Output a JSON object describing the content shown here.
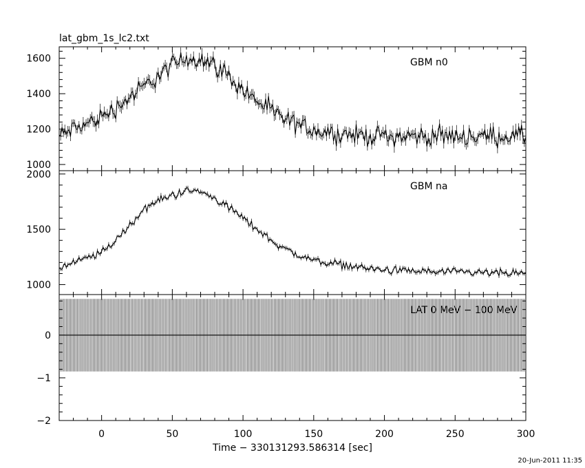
{
  "chart_data": {
    "type": "line",
    "title": "lat_gbm_1s_lc2.txt",
    "xlabel": "Time − 330131293.586314 [sec]",
    "x_ticks": [
      "0",
      "50",
      "100",
      "150",
      "200",
      "250",
      "300"
    ],
    "x_range": [
      -30,
      300
    ],
    "timestamp": "20-Jun-2011 11:35",
    "panels": [
      {
        "name": "GBM n0",
        "y_range": [
          965,
          1665
        ],
        "y_ticks": [
          "1000",
          "1200",
          "1400",
          "1600"
        ],
        "y_tick_values": [
          1000,
          1200,
          1400,
          1600
        ],
        "profile_x": [
          -30,
          -20,
          -10,
          0,
          10,
          20,
          30,
          40,
          50,
          60,
          70,
          80,
          90,
          100,
          110,
          120,
          130,
          140,
          150,
          160,
          180,
          200,
          250,
          300
        ],
        "profile_y": [
          1160,
          1200,
          1230,
          1270,
          1320,
          1380,
          1440,
          1500,
          1560,
          1600,
          1600,
          1560,
          1500,
          1420,
          1360,
          1300,
          1250,
          1220,
          1200,
          1180,
          1165,
          1160,
          1160,
          1160
        ],
        "noise": 45
      },
      {
        "name": "GBM na",
        "y_range": [
          910,
          2030
        ],
        "y_ticks": [
          "1000",
          "1500",
          "2000"
        ],
        "y_tick_values": [
          1000,
          1500,
          2000
        ],
        "profile_x": [
          -30,
          -10,
          0,
          10,
          20,
          30,
          40,
          50,
          60,
          70,
          80,
          90,
          100,
          110,
          120,
          130,
          140,
          150,
          160,
          180,
          200,
          250,
          300
        ],
        "profile_y": [
          1150,
          1240,
          1290,
          1400,
          1540,
          1680,
          1760,
          1810,
          1850,
          1840,
          1780,
          1700,
          1600,
          1500,
          1400,
          1320,
          1260,
          1220,
          1200,
          1160,
          1130,
          1110,
          1100
        ],
        "noise": 30
      },
      {
        "name": "LAT 0 MeV − 100 MeV",
        "y_range": [
          -2,
          0.95
        ],
        "y_ticks": [
          "−2",
          "−1",
          "0"
        ],
        "y_tick_values": [
          -2,
          -1,
          0
        ],
        "bar_extent": [
          -0.85,
          0.85
        ],
        "bar_step": 1
      }
    ]
  }
}
